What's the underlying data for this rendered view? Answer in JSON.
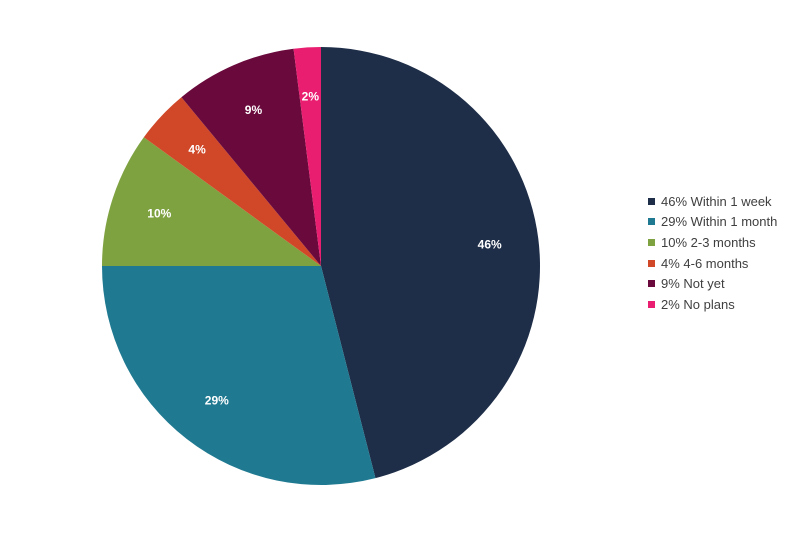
{
  "chart_data": {
    "type": "pie",
    "title": "",
    "start_angle_deg": 0,
    "direction": "clockwise",
    "legend_position": "right",
    "slices": [
      {
        "label": "46% Within 1 week",
        "value": 46,
        "data_label": "46%",
        "color": "#1E2D48"
      },
      {
        "label": "29% Within 1 month",
        "value": 29,
        "data_label": "29%",
        "color": "#1F7A91"
      },
      {
        "label": "10% 2-3 months",
        "value": 10,
        "data_label": "10%",
        "color": "#7FA241"
      },
      {
        "label": "4% 4-6 months",
        "value": 4,
        "data_label": "4%",
        "color": "#D04828"
      },
      {
        "label": "9% Not yet",
        "value": 9,
        "data_label": "9%",
        "color": "#6A0A3C"
      },
      {
        "label": "2% No plans",
        "value": 2,
        "data_label": "2%",
        "color": "#E91E70"
      }
    ]
  }
}
